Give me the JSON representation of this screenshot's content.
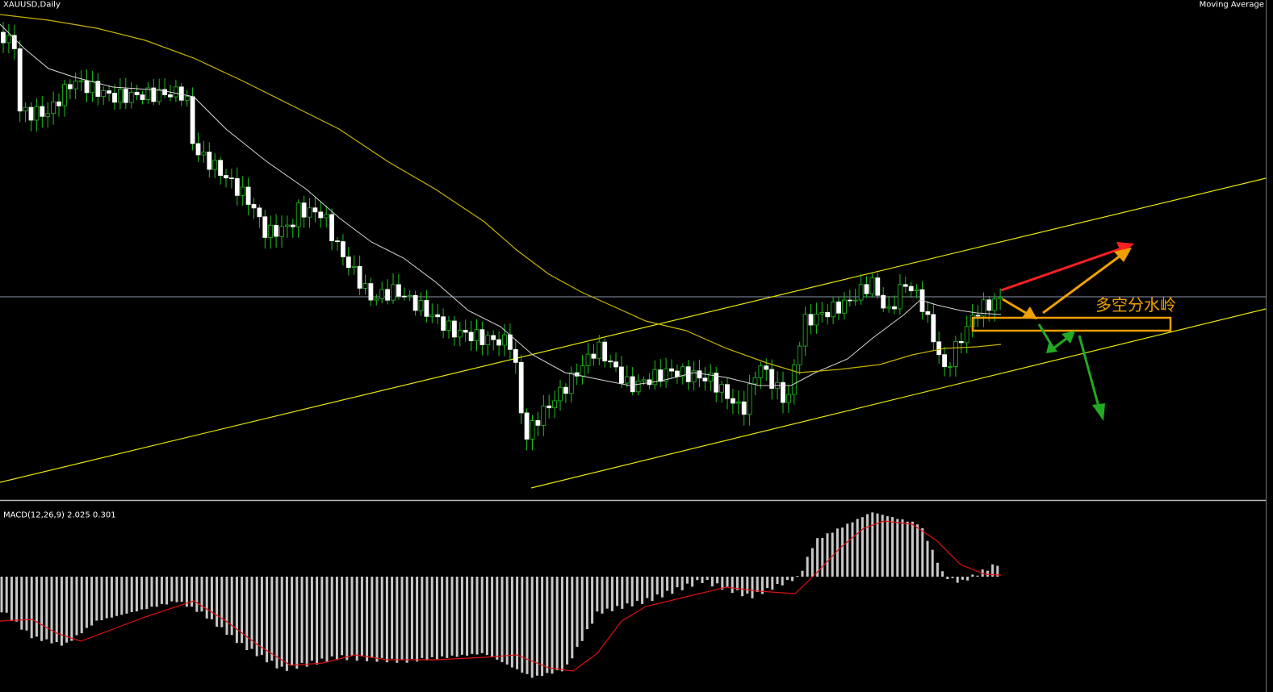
{
  "header": {
    "symbol": "XAUUSD,Daily",
    "indicator": "Moving Average"
  },
  "macd": {
    "label": "MACD(12,26,9) 2.025 0.301"
  },
  "annotation": {
    "text": "多空分水岭"
  }
}
